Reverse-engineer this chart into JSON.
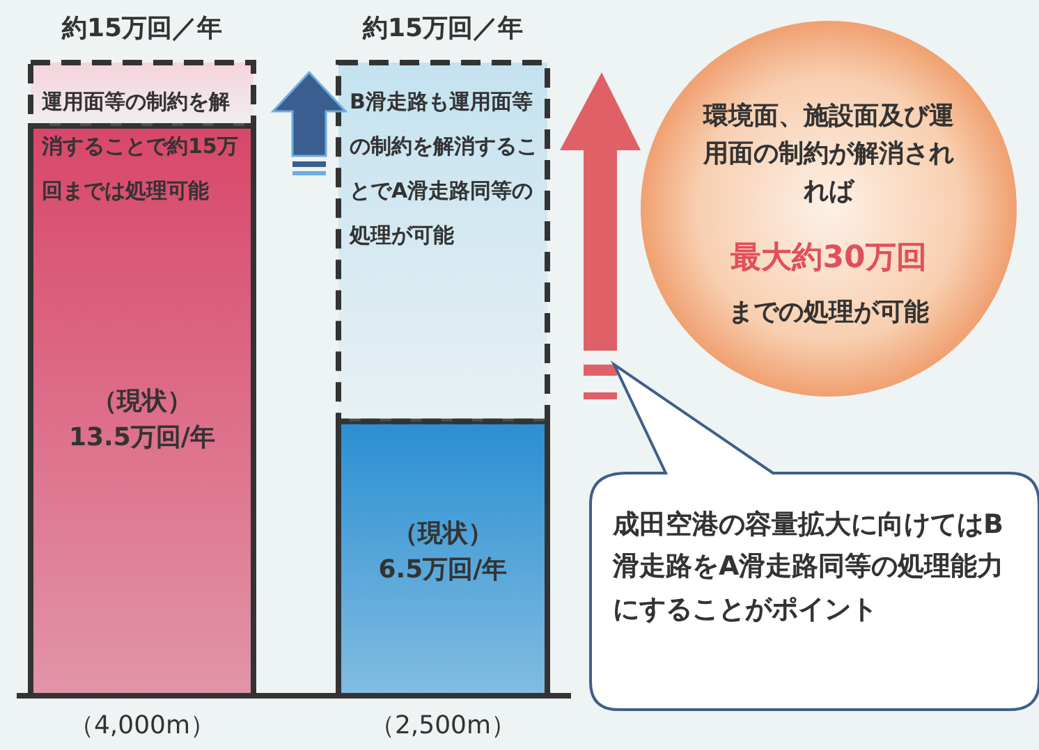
{
  "chart_data": {
    "type": "bar",
    "stacked": true,
    "categories": [
      "（4,000m）",
      "（2,500m）"
    ],
    "series": [
      {
        "colors": [
          "#d8476a",
          "#2a8fd2"
        ],
        "values": [
          13.5,
          6.5
        ],
        "value_labels": [
          "（現状）\n13.5万回/年",
          "（現状）\n6.5万回/年"
        ]
      },
      {
        "colors": [
          "#f6d3dc",
          "#c4e2f0"
        ],
        "line_style": "dashed",
        "values": [
          1.5,
          8.5
        ],
        "value_labels": [
          "運用面等の制約を解消することで約15万回までは処理可能",
          "B滑走路も運用面等の制約を解消することでA滑走路同等の処理が可能"
        ]
      }
    ],
    "totals": [
      "約15万回／年",
      "約15万回／年"
    ],
    "annotations": [
      "環境面、施設面及び運用面の制約が解消されれば",
      "最大約30万回",
      "までの処理が可能",
      "成田空港の容量拡大に向けてはB滑走路をA滑走路同等の処理能力にすることがポイント"
    ]
  }
}
